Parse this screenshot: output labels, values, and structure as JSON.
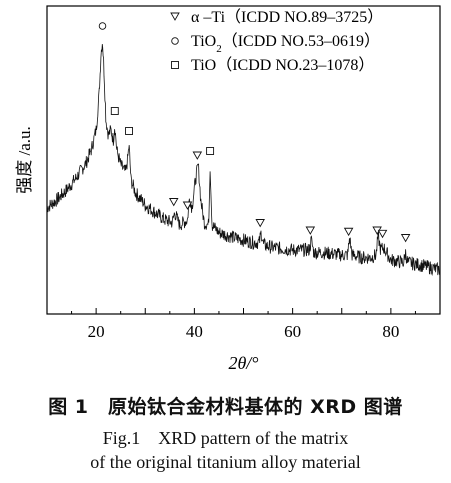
{
  "chart_data": {
    "type": "line",
    "xlabel": "2θ/°",
    "ylabel": "强度 /a.u.",
    "xlim": [
      10,
      90
    ],
    "xticks": [
      20,
      40,
      60,
      80
    ],
    "grid": false,
    "legend_position": "top-right",
    "series": [
      {
        "values_description": "XRD intensity (a.u.)",
        "x": [
          10,
          12,
          14,
          16,
          18,
          19,
          20,
          20.6,
          21,
          21.3,
          21.6,
          22,
          22.5,
          23,
          23.5,
          23.8,
          24.2,
          25,
          26,
          26.4,
          26.7,
          27.1,
          28,
          30,
          32,
          34,
          35.5,
          36,
          37,
          38.6,
          39,
          39.5,
          40.3,
          40.8,
          41.3,
          42,
          42.9,
          43.2,
          43.6,
          45,
          48,
          50,
          52,
          53.2,
          53.6,
          54.1,
          56,
          60,
          63.4,
          63.8,
          64.3,
          66,
          70,
          71.2,
          71.6,
          72.1,
          74,
          76,
          77,
          77.4,
          77.9,
          78.5,
          80,
          82.6,
          83,
          83.4,
          86,
          88,
          90
        ],
        "y": [
          0.33,
          0.36,
          0.4,
          0.45,
          0.51,
          0.56,
          0.64,
          0.78,
          0.95,
          1.0,
          0.88,
          0.68,
          0.62,
          0.64,
          0.6,
          0.66,
          0.56,
          0.5,
          0.47,
          0.52,
          0.58,
          0.44,
          0.39,
          0.34,
          0.31,
          0.28,
          0.27,
          0.31,
          0.26,
          0.28,
          0.37,
          0.33,
          0.45,
          0.5,
          0.36,
          0.27,
          0.26,
          0.5,
          0.26,
          0.23,
          0.21,
          0.2,
          0.19,
          0.19,
          0.23,
          0.18,
          0.17,
          0.16,
          0.16,
          0.2,
          0.15,
          0.15,
          0.14,
          0.14,
          0.21,
          0.14,
          0.13,
          0.13,
          0.14,
          0.22,
          0.16,
          0.17,
          0.12,
          0.11,
          0.15,
          0.11,
          0.1,
          0.09,
          0.08
        ]
      }
    ],
    "legend": [
      {
        "marker": "▽",
        "symbol": "triangle",
        "label": "α –Ti（ICDD NO.89–3725）"
      },
      {
        "marker": "○",
        "symbol": "circle",
        "label": "TiO",
        "sub": "2",
        "suffix": "（ICDD NO.53–0619）"
      },
      {
        "marker": "□",
        "symbol": "square",
        "label": "TiO（ICDD NO.23–1078）"
      }
    ],
    "peak_markers": [
      {
        "x": 21.3,
        "phase": "circle"
      },
      {
        "x": 23.8,
        "phase": "square"
      },
      {
        "x": 26.7,
        "phase": "square"
      },
      {
        "x": 43.2,
        "phase": "square"
      },
      {
        "x": 35.8,
        "phase": "triangle"
      },
      {
        "x": 38.6,
        "phase": "triangle"
      },
      {
        "x": 40.6,
        "phase": "triangle"
      },
      {
        "x": 53.4,
        "phase": "triangle"
      },
      {
        "x": 63.6,
        "phase": "triangle"
      },
      {
        "x": 71.4,
        "phase": "triangle"
      },
      {
        "x": 77.2,
        "phase": "triangle"
      },
      {
        "x": 78.3,
        "phase": "triangle"
      },
      {
        "x": 83.0,
        "phase": "triangle"
      }
    ]
  },
  "caption": {
    "zh": "图 1　原始钛合金材料基体的 XRD 图谱",
    "en_line1": "Fig.1　XRD pattern of the matrix",
    "en_line2": "of the original titanium alloy material"
  }
}
